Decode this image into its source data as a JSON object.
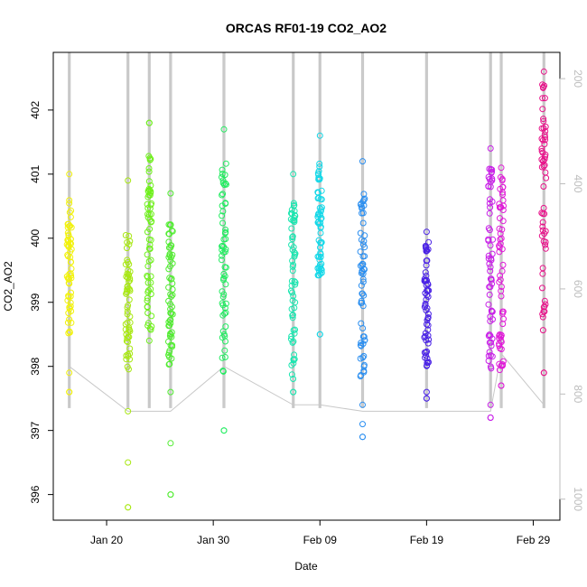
{
  "chart_data": {
    "type": "scatter",
    "title": "ORCAS RF01-19 CO2_AO2",
    "xlabel": "Date",
    "ylabel": "CO2_AO2",
    "xlim": [
      "2016-01-15T00:00",
      "2016-03-02T12:00"
    ],
    "ylim": [
      395.6,
      402.9
    ],
    "x_ticks": [
      {
        "date": "2016-01-20",
        "label": "Jan 20"
      },
      {
        "date": "2016-01-30",
        "label": "Jan 30"
      },
      {
        "date": "2016-02-09",
        "label": "Feb 09"
      },
      {
        "date": "2016-02-19",
        "label": "Feb 19"
      },
      {
        "date": "2016-02-29",
        "label": "Feb 29"
      }
    ],
    "y_ticks": [
      396,
      397,
      398,
      399,
      400,
      401,
      402
    ],
    "secondary_axis": {
      "side": "right",
      "ticks": [
        200,
        400,
        600,
        800,
        1000
      ],
      "ylim": [
        1040,
        150
      ],
      "color": "#bdbdbd"
    },
    "marker": "open-circle",
    "grid": false,
    "flights": [
      {
        "date": "2016-01-16T12:00",
        "color": "#f2f20a",
        "ymin": 397.6,
        "ymax": 401.0,
        "dense": [
          398.5,
          400.6
        ],
        "outliers": [
          397.6,
          397.9
        ]
      },
      {
        "date": "2016-01-22T00:00",
        "color": "#a8e812",
        "ymin": 395.8,
        "ymax": 400.9,
        "dense": [
          397.9,
          400.1
        ],
        "outliers": [
          395.8,
          396.5,
          397.3
        ]
      },
      {
        "date": "2016-01-24T00:00",
        "color": "#6ef01a",
        "ymin": 398.4,
        "ymax": 401.8,
        "dense": [
          398.5,
          401.3
        ],
        "outliers": [
          401.8
        ]
      },
      {
        "date": "2016-01-26T00:00",
        "color": "#50ec30",
        "ymin": 396.0,
        "ymax": 400.7,
        "dense": [
          398.0,
          400.3
        ],
        "outliers": [
          396.0,
          396.8,
          397.6
        ]
      },
      {
        "date": "2016-01-31T00:00",
        "color": "#22ec60",
        "ymin": 397.0,
        "ymax": 401.7,
        "dense": [
          397.9,
          401.2
        ],
        "outliers": [
          397.0
        ]
      },
      {
        "date": "2016-02-06T12:00",
        "color": "#1ae6b0",
        "ymin": 397.6,
        "ymax": 401.0,
        "dense": [
          397.8,
          400.6
        ],
        "outliers": [
          397.6
        ]
      },
      {
        "date": "2016-02-09T00:00",
        "color": "#14d8e8",
        "ymin": 398.5,
        "ymax": 401.6,
        "dense": [
          399.4,
          401.2
        ],
        "outliers": [
          398.5
        ]
      },
      {
        "date": "2016-02-13T00:00",
        "color": "#2a8ef0",
        "ymin": 396.9,
        "ymax": 401.2,
        "dense": [
          397.8,
          400.7
        ],
        "outliers": [
          396.9,
          397.1,
          397.4
        ]
      },
      {
        "date": "2016-02-19T00:00",
        "color": "#4a22e6",
        "ymin": 397.5,
        "ymax": 400.1,
        "dense": [
          398.0,
          400.0
        ],
        "outliers": [
          397.5,
          397.6
        ]
      },
      {
        "date": "2016-02-25T00:00",
        "color": "#c81ee8",
        "ymin": 397.2,
        "ymax": 401.4,
        "dense": [
          397.9,
          401.2
        ],
        "outliers": [
          397.2,
          397.4
        ]
      },
      {
        "date": "2016-02-26T00:00",
        "color": "#e01ad8",
        "ymin": 397.7,
        "ymax": 401.1,
        "dense": [
          397.9,
          401.0
        ],
        "outliers": [
          397.7
        ]
      },
      {
        "date": "2016-03-01T00:00",
        "color": "#e8128a",
        "ymin": 397.9,
        "ymax": 402.6,
        "dense": [
          398.5,
          402.4
        ],
        "outliers": [
          397.9
        ]
      }
    ]
  }
}
